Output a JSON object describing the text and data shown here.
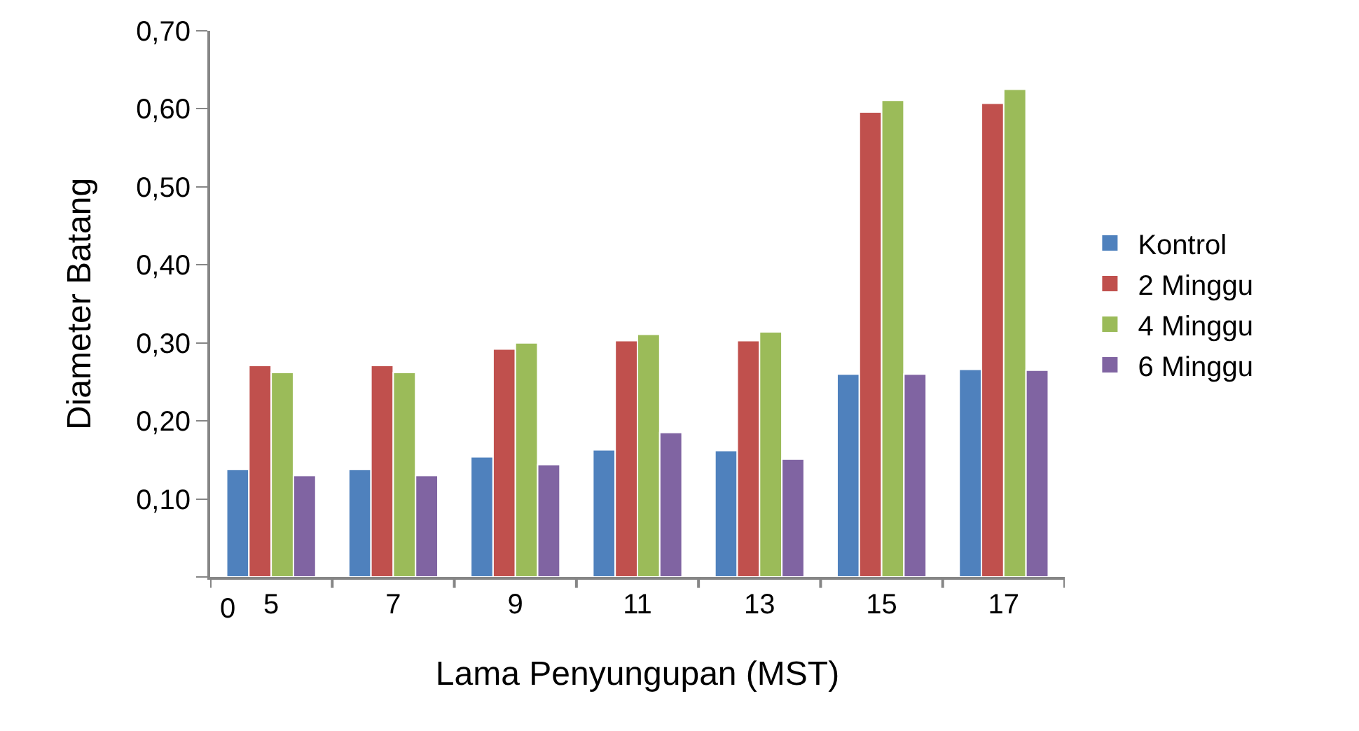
{
  "chart_data": {
    "type": "bar",
    "xlabel": "Lama Penyungupan (MST)",
    "ylabel": "Diameter Batang",
    "categories": [
      "5",
      "7",
      "9",
      "11",
      "13",
      "15",
      "17"
    ],
    "series": [
      {
        "name": "Kontrol",
        "color": "#4f81bd",
        "values": [
          0.138,
          0.138,
          0.154,
          0.163,
          0.162,
          0.26,
          0.266
        ]
      },
      {
        "name": "2 Minggu",
        "color": "#c0504d",
        "values": [
          0.271,
          0.271,
          0.292,
          0.303,
          0.303,
          0.596,
          0.607
        ]
      },
      {
        "name": "4 Minggu",
        "color": "#9bbb59",
        "values": [
          0.262,
          0.262,
          0.3,
          0.311,
          0.314,
          0.611,
          0.625
        ]
      },
      {
        "name": "6 Minggu",
        "color": "#8064a2",
        "values": [
          0.13,
          0.13,
          0.144,
          0.185,
          0.151,
          0.26,
          0.265
        ]
      }
    ],
    "ylim": [
      0,
      0.7
    ],
    "yticks": [
      {
        "value": 0,
        "label": null
      },
      {
        "value": 0.1,
        "label": "0,10"
      },
      {
        "value": 0.2,
        "label": "0,20"
      },
      {
        "value": 0.3,
        "label": "0,30"
      },
      {
        "value": 0.4,
        "label": "0,40"
      },
      {
        "value": 0.5,
        "label": "0,50"
      },
      {
        "value": 0.6,
        "label": "0,60"
      },
      {
        "value": 0.7,
        "label": "0,70"
      }
    ],
    "annotations": [
      "0"
    ],
    "legend": "right"
  }
}
